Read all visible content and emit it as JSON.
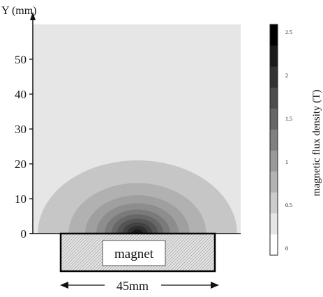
{
  "chart_data": {
    "type": "heatmap",
    "title": "",
    "xlabel": "",
    "ylabel": "Y (mm)",
    "ylim": [
      0,
      60
    ],
    "yticks": [
      0,
      10,
      20,
      30,
      40,
      50
    ],
    "grid": false,
    "colorbar": {
      "label": "magnetic flux density  (T)",
      "range": [
        0,
        2.5
      ],
      "levels": 11,
      "ticks": [
        "0",
        "0.5",
        "1",
        "1.5",
        "2",
        "2.5"
      ],
      "colormap": "grayscale",
      "background_color": "#e6e6e6"
    },
    "contour_levels_mm": [
      {
        "level": 1,
        "radius_y_mm": 21.0,
        "color": "#c6c6c6"
      },
      {
        "level": 2,
        "radius_y_mm": 14.5,
        "color": "#b1b1b1"
      },
      {
        "level": 3,
        "radius_y_mm": 11.0,
        "color": "#9f9f9f"
      },
      {
        "level": 4,
        "radius_y_mm": 8.7,
        "color": "#8d8d8d"
      },
      {
        "level": 5,
        "radius_y_mm": 6.9,
        "color": "#7a7a7a"
      },
      {
        "level": 6,
        "radius_y_mm": 5.5,
        "color": "#676767"
      },
      {
        "level": 7,
        "radius_y_mm": 4.3,
        "color": "#545454"
      },
      {
        "level": 8,
        "radius_y_mm": 3.2,
        "color": "#424242"
      },
      {
        "level": 9,
        "radius_y_mm": 2.2,
        "color": "#2f2f2f"
      },
      {
        "level": 10,
        "radius_y_mm": 1.2,
        "color": "#1b1b1b"
      }
    ],
    "magnet": {
      "label": "magnet",
      "width_mm": 45,
      "width_label": "45mm"
    }
  }
}
